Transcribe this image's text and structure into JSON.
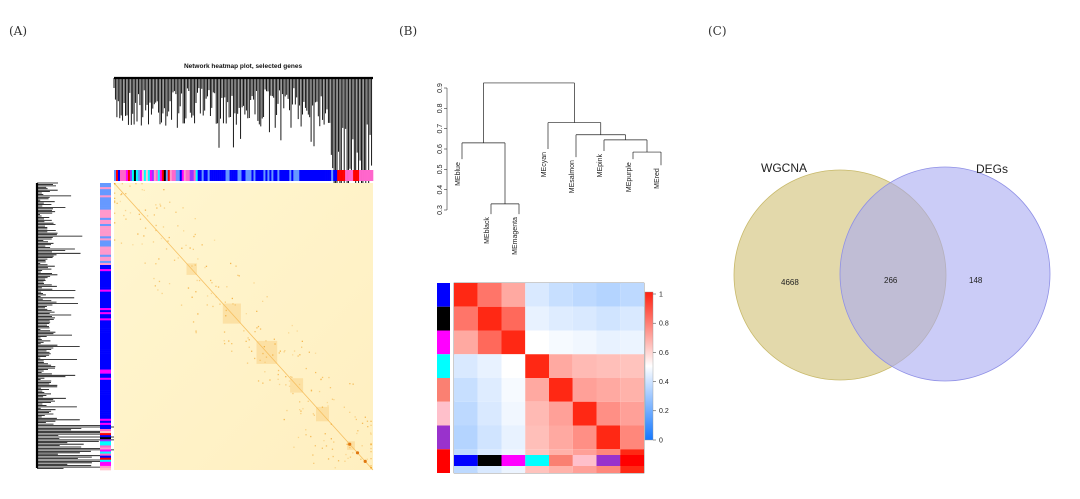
{
  "panels": {
    "a": {
      "label": "(A)"
    },
    "b": {
      "label": "(B)"
    },
    "c": {
      "label": "(C)"
    }
  },
  "chart_data": [
    {
      "panel": "A",
      "type": "heatmap",
      "title": "Network heatmap plot, selected genes",
      "colors": {
        "low": "#fff8d8",
        "high": "#f0a020",
        "diag": "#e07810"
      },
      "module_colors": [
        "#ff66cc",
        "#ff99cc",
        "#0000ff",
        "#6699ff",
        "#ff0000",
        "#000000",
        "#ff00ff",
        "#00ffff",
        "#9933ff",
        "#ffc0cb"
      ]
    },
    {
      "panel": "B-dendrogram",
      "type": "dendrogram",
      "ylim": [
        0.3,
        0.9
      ],
      "yticks": [
        "0.3",
        "0.4",
        "0.5",
        "0.6",
        "0.7",
        "0.8",
        "0.9"
      ],
      "leaves": [
        "MEblue",
        "MEblack",
        "MEmagenta",
        "MEcyan",
        "MEsalmon",
        "MEpink",
        "MEpurple",
        "MEred"
      ]
    },
    {
      "panel": "B-heatmap",
      "type": "heatmap",
      "module_colors": [
        "#0000ff",
        "#000000",
        "#ff00ff",
        "#00ffff",
        "#fa8072",
        "#ffc0cb",
        "#9932cc",
        "#ff0000"
      ],
      "matrix": [
        [
          1.0,
          0.82,
          0.7,
          0.42,
          0.38,
          0.36,
          0.34,
          0.36
        ],
        [
          0.82,
          1.0,
          0.85,
          0.45,
          0.43,
          0.42,
          0.4,
          0.42
        ],
        [
          0.7,
          0.85,
          1.0,
          0.5,
          0.48,
          0.47,
          0.45,
          0.46
        ],
        [
          0.42,
          0.45,
          0.5,
          1.0,
          0.7,
          0.66,
          0.65,
          0.64
        ],
        [
          0.38,
          0.43,
          0.48,
          0.7,
          1.0,
          0.72,
          0.7,
          0.68
        ],
        [
          0.36,
          0.42,
          0.47,
          0.66,
          0.72,
          1.0,
          0.76,
          0.72
        ],
        [
          0.34,
          0.4,
          0.45,
          0.65,
          0.7,
          0.76,
          1.0,
          0.78
        ],
        [
          0.36,
          0.42,
          0.46,
          0.64,
          0.68,
          0.72,
          0.78,
          1.0
        ]
      ],
      "colorbar": {
        "ticks": [
          "1",
          "0.8",
          "0.6",
          "0.4",
          "0.2",
          "0"
        ],
        "range": [
          0,
          1
        ]
      }
    },
    {
      "panel": "C",
      "type": "venn",
      "sets": [
        {
          "name": "WGCNA",
          "only": "4668",
          "color": "#d9cc8f"
        },
        {
          "name": "DEGs",
          "only": "148",
          "color": "#a9aaf2"
        }
      ],
      "intersection": "266"
    }
  ]
}
